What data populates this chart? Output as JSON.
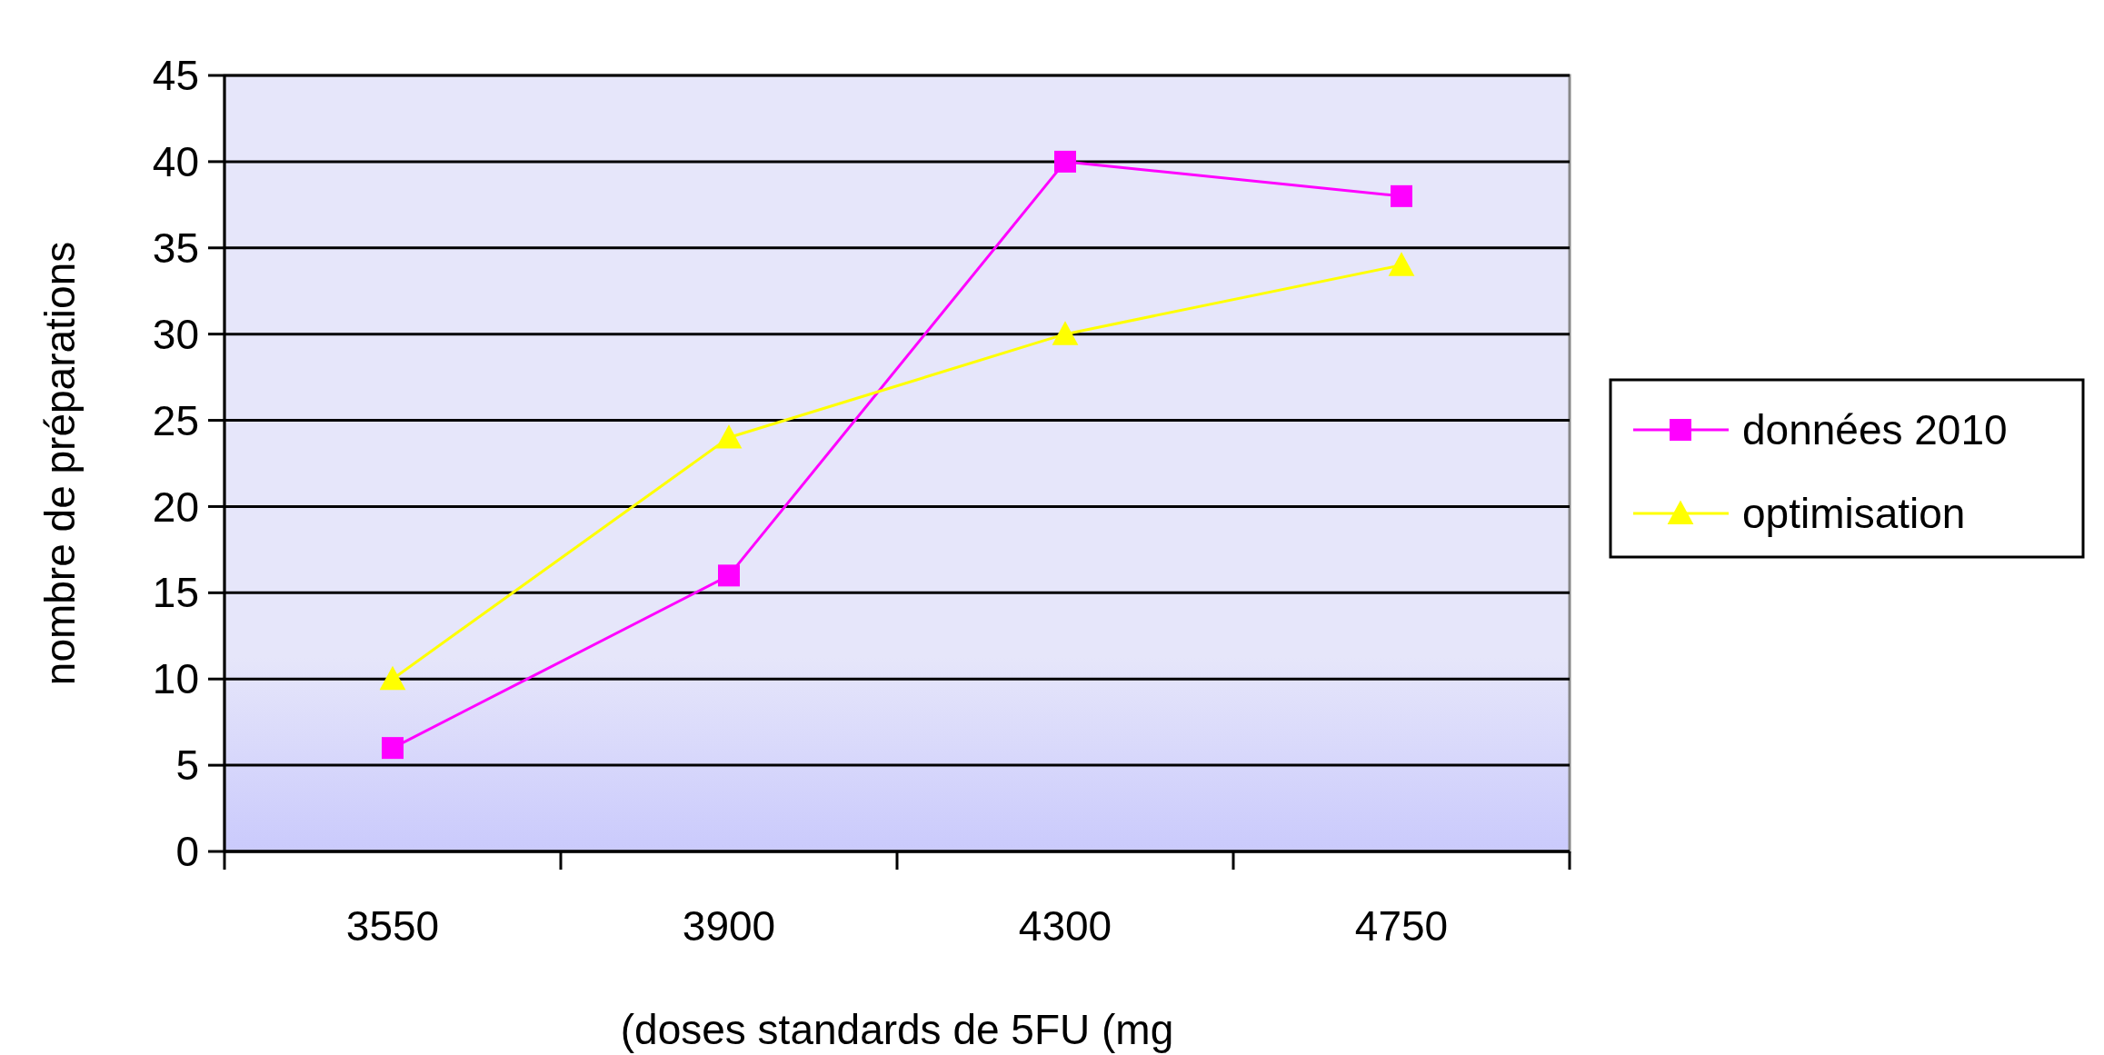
{
  "chart_data": {
    "type": "line",
    "xlabel": "(doses standards de 5FU (mg",
    "ylabel": "nombre de préparations",
    "categories": [
      "3550",
      "3900",
      "4300",
      "4750"
    ],
    "series": [
      {
        "name": "données 2010",
        "color": "#ff00ff",
        "marker": "square",
        "values": [
          6,
          16,
          40,
          38
        ]
      },
      {
        "name": "optimisation",
        "color": "#ffff00",
        "marker": "triangle",
        "values": [
          10,
          24,
          30,
          34
        ]
      }
    ],
    "ylim": [
      0,
      45
    ],
    "yticks": [
      0,
      5,
      10,
      15,
      20,
      25,
      30,
      35,
      40,
      45
    ],
    "grid": "y",
    "legend": "right"
  }
}
